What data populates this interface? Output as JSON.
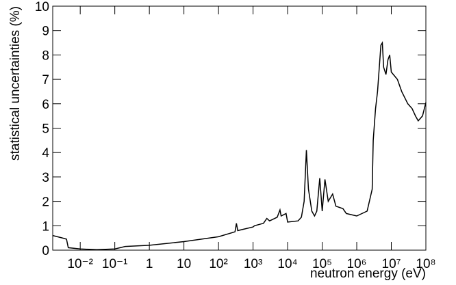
{
  "chart_data": {
    "type": "line",
    "x_label": "neutron energy (eV)",
    "y_label": "statistical uncertainties (%)",
    "x_log": true,
    "xlim": [
      0.0016,
      100000000
    ],
    "xticks": [
      {
        "value": 0.01,
        "label": "10⁻²"
      },
      {
        "value": 0.1,
        "label": "10⁻¹"
      },
      1,
      10,
      {
        "value": 100,
        "label": "10²"
      },
      {
        "value": 1000,
        "label": "10³"
      },
      {
        "value": 10000,
        "label": "10⁴"
      },
      {
        "value": 100000,
        "label": "10⁵"
      },
      {
        "value": 1000000,
        "label": "10⁶"
      },
      {
        "value": 10000000,
        "label": "10⁷"
      },
      {
        "value": 100000000,
        "label": "10⁸"
      }
    ],
    "ylim": [
      0,
      10
    ],
    "yticks": [
      0,
      1,
      2,
      3,
      4,
      5,
      6,
      7,
      8,
      9,
      10
    ],
    "series": [
      {
        "color": "#000000",
        "x": [
          0.0016,
          0.003,
          0.004,
          0.0045,
          0.01,
          0.03,
          0.1,
          0.2,
          1,
          10,
          100,
          300,
          330,
          360,
          1000,
          1100,
          2000,
          2500,
          3000,
          5000,
          6000,
          6500,
          9000,
          10000,
          20000,
          25000,
          30000,
          35000,
          40000,
          50000,
          60000,
          70000,
          85000,
          100000,
          120000,
          150000,
          200000,
          250000,
          400000,
          500000,
          1000000,
          2000000,
          2800000,
          3000000,
          3500000,
          4000000,
          5000000,
          5500000,
          6000000,
          7000000,
          8000000,
          9000000,
          10000000,
          15000000,
          20000000,
          30000000,
          40000000,
          50000000,
          60000000,
          80000000,
          100000000
        ],
        "values": [
          0.6,
          0.5,
          0.45,
          0.1,
          0.05,
          0.02,
          0.05,
          0.15,
          0.2,
          0.35,
          0.55,
          0.75,
          1.1,
          0.8,
          0.95,
          1.0,
          1.1,
          1.3,
          1.2,
          1.35,
          1.65,
          1.4,
          1.5,
          1.15,
          1.2,
          1.35,
          2.0,
          4.1,
          2.5,
          1.6,
          1.4,
          1.6,
          2.95,
          1.6,
          2.9,
          2.0,
          2.3,
          1.8,
          1.7,
          1.5,
          1.4,
          1.6,
          2.5,
          4.5,
          5.8,
          6.5,
          8.4,
          8.5,
          7.5,
          7.2,
          7.8,
          8.0,
          7.3,
          7.0,
          6.5,
          6.0,
          5.8,
          5.5,
          5.3,
          5.5,
          6.05
        ]
      }
    ]
  }
}
